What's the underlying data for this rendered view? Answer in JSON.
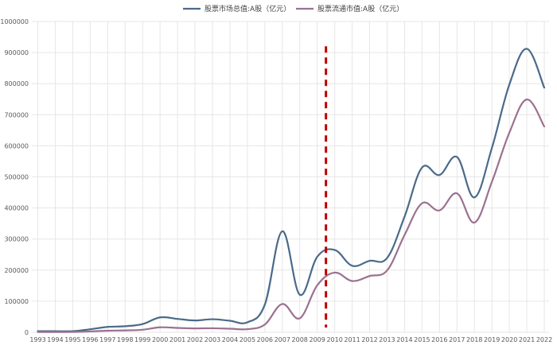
{
  "chart_data": {
    "type": "line",
    "title": "",
    "xlabel": "",
    "ylabel": "",
    "categories": [
      "1993",
      "1994",
      "1995",
      "1996",
      "1997",
      "1998",
      "1999",
      "2000",
      "2001",
      "2002",
      "2003",
      "2004",
      "2005",
      "2006",
      "2007",
      "2008",
      "2009",
      "2010",
      "2011",
      "2012",
      "2013",
      "2014",
      "2015",
      "2016",
      "2017",
      "2018",
      "2019",
      "2020",
      "2021",
      "2022"
    ],
    "ylim": [
      0,
      1000000
    ],
    "yticks": [
      "0",
      "100000",
      "200000",
      "300000",
      "400000",
      "500000",
      "600000",
      "700000",
      "800000",
      "900000",
      "1000000"
    ],
    "grid": "vertical-and-horizontal",
    "legend_position": "top-center",
    "series": [
      {
        "name": "股票市场总值:A股（亿元）",
        "color": "#4a6a8a",
        "values": [
          3500,
          3700,
          3500,
          9800,
          17200,
          19500,
          26500,
          48000,
          43000,
          38000,
          42000,
          37000,
          32000,
          89000,
          325000,
          121000,
          243000,
          265000,
          214000,
          230000,
          239000,
          372000,
          530000,
          506000,
          564000,
          434000,
          593000,
          797000,
          912000,
          787000
        ]
      },
      {
        "name": "股票流通市值:A股（亿元）",
        "color": "#9b7190",
        "values": [
          900,
          1000,
          1100,
          2800,
          5200,
          6000,
          8200,
          16000,
          14000,
          12500,
          13000,
          11500,
          10000,
          25000,
          91000,
          45000,
          151000,
          192000,
          165000,
          181000,
          199000,
          313000,
          415000,
          392000,
          447000,
          353000,
          484000,
          642000,
          749000,
          662000
        ]
      }
    ],
    "annotation": {
      "type": "vertical-dashed-line",
      "x": 2009.5,
      "color": "#c00000"
    }
  }
}
